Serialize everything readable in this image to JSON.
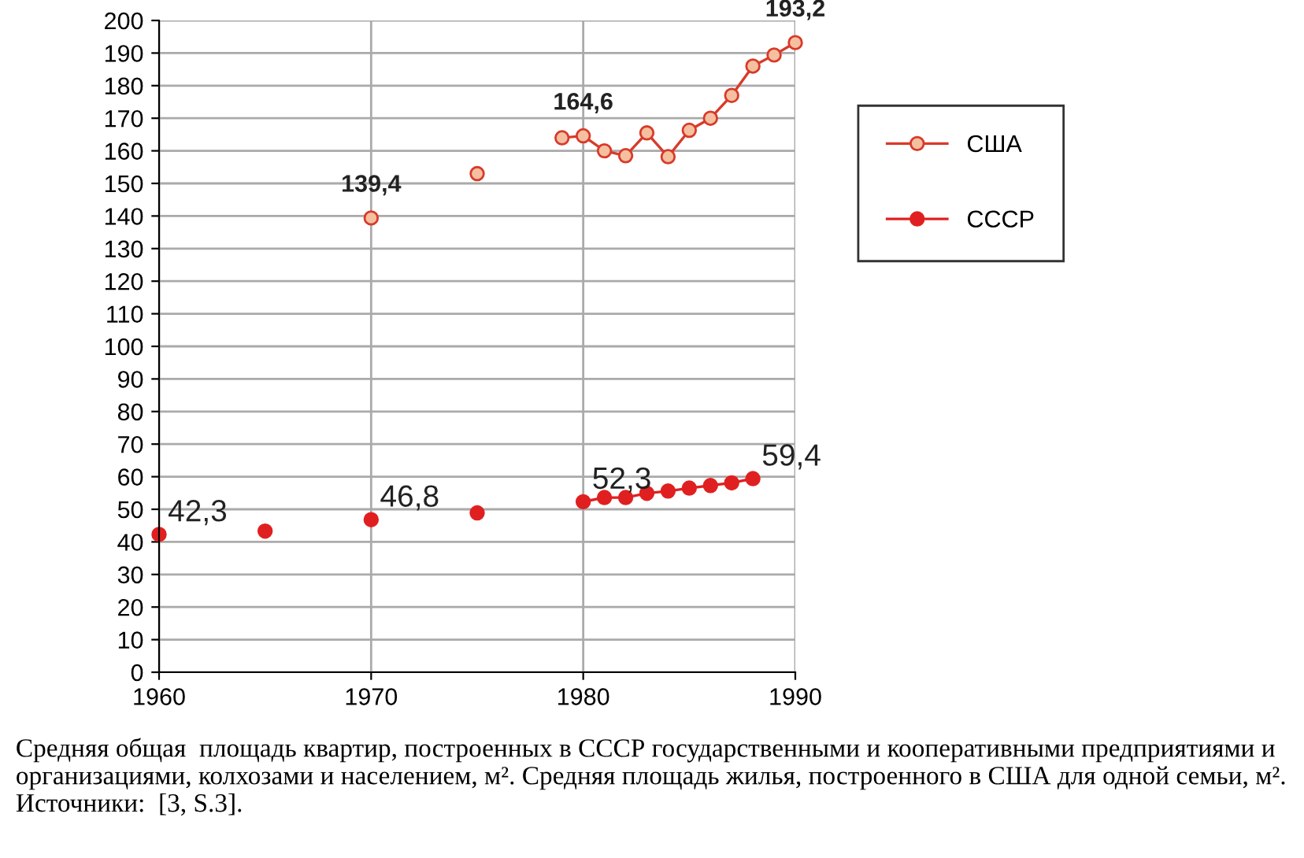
{
  "chart_data": {
    "type": "line",
    "xlim": [
      1960,
      1990
    ],
    "xticks": [
      1960,
      1970,
      1980,
      1990
    ],
    "ylim": [
      0,
      200
    ],
    "yticks": [
      0,
      10,
      20,
      30,
      40,
      50,
      60,
      70,
      80,
      90,
      100,
      110,
      120,
      130,
      140,
      150,
      160,
      170,
      180,
      190,
      200
    ],
    "grid": true,
    "legend": "right",
    "marker": "circle",
    "line_style": "solid",
    "series": [
      {
        "name": "США",
        "color": "#d83a2a",
        "x": [
          1970,
          1971,
          1972,
          1973,
          1974,
          1975,
          1976,
          1977,
          1978,
          1979,
          1980,
          1981,
          1982,
          1983,
          1984,
          1985,
          1986,
          1987,
          1988,
          1989,
          1990
        ],
        "values": [
          139.4,
          null,
          null,
          null,
          null,
          153,
          null,
          null,
          null,
          164,
          164.6,
          160,
          158.5,
          165.5,
          158.2,
          166.3,
          170,
          177,
          186,
          189.4,
          193.2
        ]
      },
      {
        "name": "СССР",
        "color": "#e02020",
        "x": [
          1960,
          1961,
          1962,
          1963,
          1964,
          1965,
          1966,
          1967,
          1968,
          1969,
          1970,
          1971,
          1972,
          1973,
          1974,
          1975,
          1976,
          1977,
          1978,
          1979,
          1980,
          1981,
          1982,
          1983,
          1984,
          1985,
          1986,
          1987,
          1988
        ],
        "values": [
          42.3,
          null,
          null,
          null,
          null,
          43.3,
          null,
          null,
          null,
          null,
          46.8,
          null,
          null,
          null,
          null,
          48.9,
          null,
          null,
          null,
          null,
          52.3,
          53.6,
          53.6,
          54.9,
          55.6,
          56.5,
          57.3,
          58.1,
          59.4
        ]
      }
    ],
    "annotations": [
      {
        "text": "139,4",
        "x": 1970,
        "y": 139.4
      },
      {
        "text": "164,6",
        "x": 1980,
        "y": 164.6
      },
      {
        "text": "193,2",
        "x": 1990,
        "y": 193.2
      },
      {
        "text": "42,3",
        "x": 1960,
        "y": 42.3
      },
      {
        "text": "46,8",
        "x": 1970,
        "y": 46.8
      },
      {
        "text": "52,3",
        "x": 1980,
        "y": 52.3
      },
      {
        "text": "59,4",
        "x": 1988,
        "y": 59.4
      },
      "Средняя общая  площадь квартир, построенных в СССР государственными и кооперативными предприятиями и организациями, колхозами и населением, м². Средняя площадь жилья, построенного в США для одной семьи, м². Источники:  [3, S.3]."
    ]
  }
}
